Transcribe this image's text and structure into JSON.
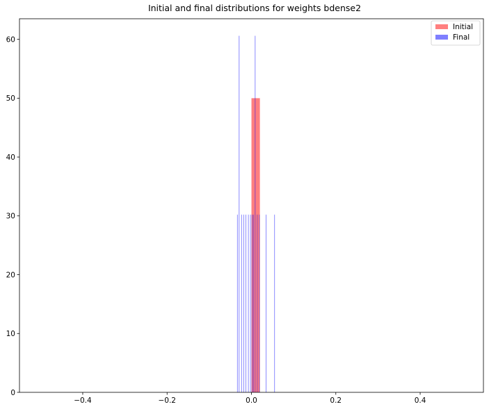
{
  "chart_data": {
    "type": "bar",
    "title": "Initial and final distributions for weights bdense2",
    "xlabel": "",
    "ylabel": "",
    "xlim": [
      -0.55,
      0.55
    ],
    "ylim": [
      0,
      63.5
    ],
    "xticks": [
      -0.4,
      -0.2,
      0.0,
      0.2,
      0.4
    ],
    "xtick_labels": [
      "−0.4",
      "−0.2",
      "0.0",
      "0.2",
      "0.4"
    ],
    "yticks": [
      0,
      10,
      20,
      30,
      40,
      50,
      60
    ],
    "ytick_labels": [
      "0",
      "10",
      "20",
      "30",
      "40",
      "50",
      "60"
    ],
    "grid": false,
    "legend_position": "top-right",
    "series": [
      {
        "name": "Initial",
        "color": "#ff0000",
        "opacity": 0.5,
        "bins": [
          {
            "x0": 0.0,
            "x1": 0.02,
            "count": 50
          }
        ]
      },
      {
        "name": "Final",
        "color": "#0000ff",
        "opacity": 0.5,
        "bins": [
          {
            "x0": -0.034,
            "x1": -0.0325,
            "count": 30.2
          },
          {
            "x0": -0.03,
            "x1": -0.0285,
            "count": 60.6
          },
          {
            "x0": -0.024,
            "x1": -0.0225,
            "count": 30.2
          },
          {
            "x0": -0.019,
            "x1": -0.0175,
            "count": 30.2
          },
          {
            "x0": -0.014,
            "x1": -0.0125,
            "count": 30.2
          },
          {
            "x0": -0.008,
            "x1": -0.0065,
            "count": 30.2
          },
          {
            "x0": -0.003,
            "x1": -0.0015,
            "count": 30.2
          },
          {
            "x0": 0.001,
            "x1": 0.0025,
            "count": 30.2
          },
          {
            "x0": 0.004,
            "x1": 0.0055,
            "count": 30.2
          },
          {
            "x0": 0.008,
            "x1": 0.0095,
            "count": 60.6
          },
          {
            "x0": 0.013,
            "x1": 0.0145,
            "count": 30.2
          },
          {
            "x0": 0.018,
            "x1": 0.0195,
            "count": 30.2
          },
          {
            "x0": 0.034,
            "x1": 0.0355,
            "count": 30.2
          },
          {
            "x0": 0.054,
            "x1": 0.0555,
            "count": 30.2
          }
        ]
      }
    ]
  }
}
